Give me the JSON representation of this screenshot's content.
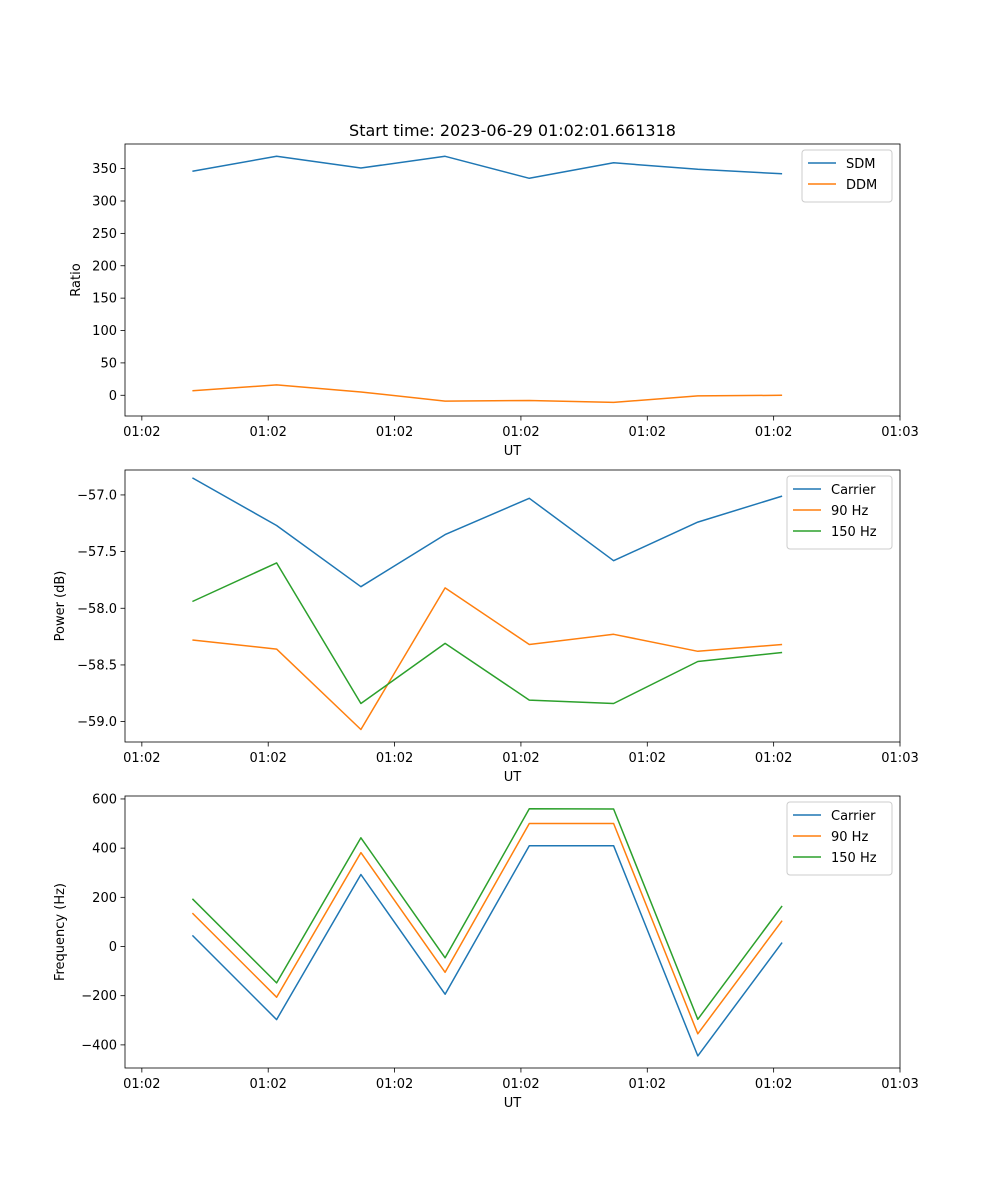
{
  "figure": {
    "title": "Start time: 2023-06-29 01:02:01.661318"
  },
  "chart_data": [
    {
      "type": "line",
      "title": "",
      "xlabel": "UT",
      "ylabel": "Ratio",
      "x": [
        1,
        2,
        3,
        4,
        5,
        6,
        7,
        8
      ],
      "xlim": [
        0.2,
        9.4
      ],
      "xticks": [
        {
          "pos": 0.4,
          "label": "01:02"
        },
        {
          "pos": 1.9,
          "label": "01:02"
        },
        {
          "pos": 3.4,
          "label": "01:02"
        },
        {
          "pos": 4.9,
          "label": "01:02"
        },
        {
          "pos": 6.4,
          "label": "01:02"
        },
        {
          "pos": 7.9,
          "label": "01:02"
        },
        {
          "pos": 9.4,
          "label": "01:03"
        }
      ],
      "ylim": [
        -32,
        388
      ],
      "yticks": [
        0,
        50,
        100,
        150,
        200,
        250,
        300,
        350
      ],
      "legend": "top-right",
      "grid": false,
      "series": [
        {
          "name": "SDM",
          "color": "#1f77b4",
          "values": [
            346,
            369,
            351,
            369,
            335,
            359,
            349,
            342
          ]
        },
        {
          "name": "DDM",
          "color": "#ff7f0e",
          "values": [
            7,
            16,
            5,
            -9,
            -8,
            -11,
            -1,
            0
          ]
        }
      ]
    },
    {
      "type": "line",
      "title": "",
      "xlabel": "UT",
      "ylabel": "Power (dB)",
      "x": [
        1,
        2,
        3,
        4,
        5,
        6,
        7,
        8
      ],
      "xlim": [
        0.2,
        9.4
      ],
      "xticks": [
        {
          "pos": 0.4,
          "label": "01:02"
        },
        {
          "pos": 1.9,
          "label": "01:02"
        },
        {
          "pos": 3.4,
          "label": "01:02"
        },
        {
          "pos": 4.9,
          "label": "01:02"
        },
        {
          "pos": 6.4,
          "label": "01:02"
        },
        {
          "pos": 7.9,
          "label": "01:02"
        },
        {
          "pos": 9.4,
          "label": "01:03"
        }
      ],
      "ylim": [
        -59.18,
        -56.78
      ],
      "yticks": [
        -59.0,
        -58.5,
        -58.0,
        -57.5,
        -57.0
      ],
      "ytick_labels": [
        "−59.0",
        "−58.5",
        "−58.0",
        "−57.5",
        "−57.0"
      ],
      "legend": "top-right",
      "grid": false,
      "series": [
        {
          "name": "Carrier",
          "color": "#1f77b4",
          "values": [
            -56.85,
            -57.27,
            -57.81,
            -57.35,
            -57.03,
            -57.58,
            -57.24,
            -57.01
          ]
        },
        {
          "name": "90 Hz",
          "color": "#ff7f0e",
          "values": [
            -58.28,
            -58.36,
            -59.07,
            -57.82,
            -58.32,
            -58.23,
            -58.38,
            -58.32
          ]
        },
        {
          "name": "150 Hz",
          "color": "#2ca02c",
          "values": [
            -57.94,
            -57.6,
            -58.84,
            -58.31,
            -58.81,
            -58.84,
            -58.47,
            -58.39
          ]
        }
      ]
    },
    {
      "type": "line",
      "title": "",
      "xlabel": "UT",
      "ylabel": "Frequency (Hz)",
      "x": [
        1,
        2,
        3,
        4,
        5,
        6,
        7,
        8
      ],
      "xlim": [
        0.2,
        9.4
      ],
      "xticks": [
        {
          "pos": 0.4,
          "label": "01:02"
        },
        {
          "pos": 1.9,
          "label": "01:02"
        },
        {
          "pos": 3.4,
          "label": "01:02"
        },
        {
          "pos": 4.9,
          "label": "01:02"
        },
        {
          "pos": 6.4,
          "label": "01:02"
        },
        {
          "pos": 7.9,
          "label": "01:02"
        },
        {
          "pos": 9.4,
          "label": "01:03"
        }
      ],
      "ylim": [
        -494,
        612
      ],
      "yticks": [
        -400,
        -200,
        0,
        200,
        400,
        600
      ],
      "ytick_labels": [
        "−400",
        "−200",
        "0",
        "200",
        "400",
        "600"
      ],
      "legend": "top-right",
      "grid": false,
      "series": [
        {
          "name": "Carrier",
          "color": "#1f77b4",
          "values": [
            45,
            -297,
            293,
            -194,
            410,
            410,
            -445,
            16
          ]
        },
        {
          "name": "90 Hz",
          "color": "#ff7f0e",
          "values": [
            136,
            -206,
            382,
            -105,
            500,
            500,
            -355,
            105
          ]
        },
        {
          "name": "150 Hz",
          "color": "#2ca02c",
          "values": [
            194,
            -148,
            442,
            -46,
            560,
            559,
            -296,
            165
          ]
        }
      ]
    }
  ]
}
